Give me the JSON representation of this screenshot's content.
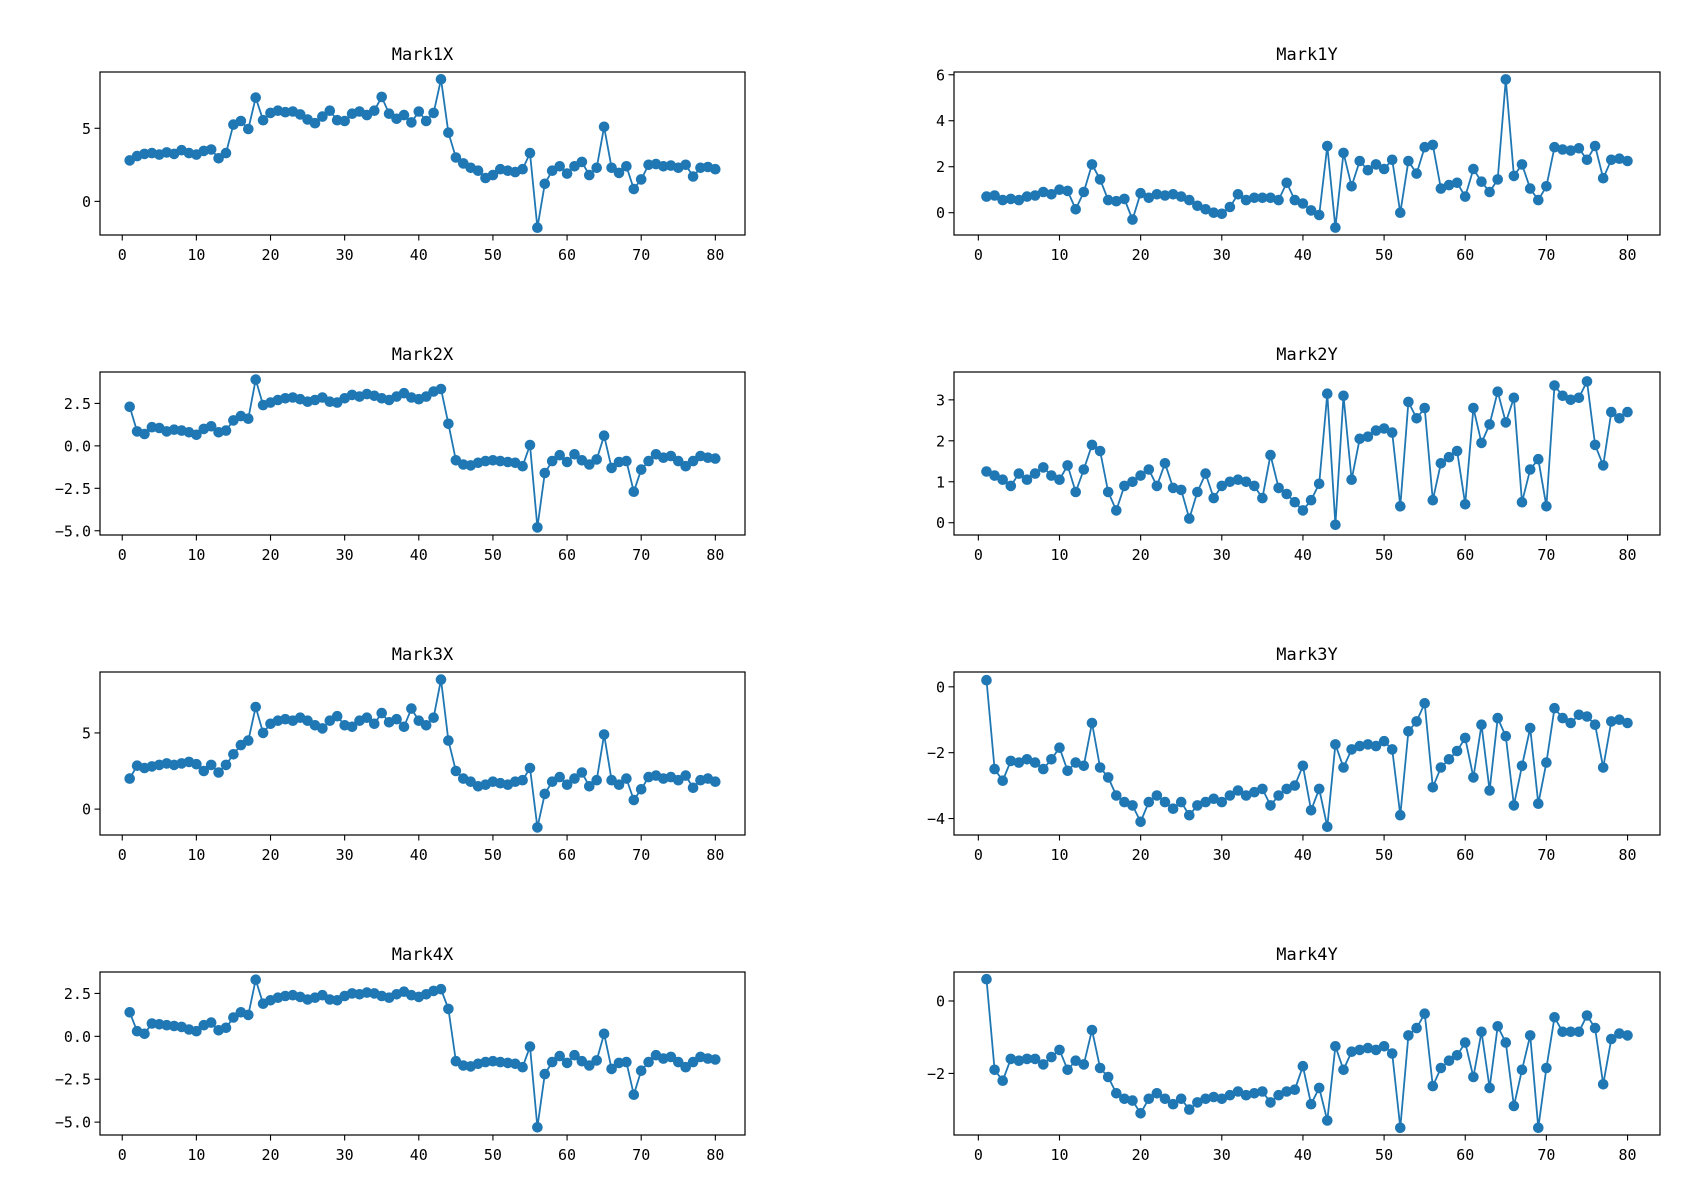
{
  "page": {
    "background": "#ffffff"
  },
  "style": {
    "line_color": "#1f77b4",
    "marker_color": "#1f77b4",
    "axis_color": "#000000",
    "tick_label_color": "#000000"
  },
  "chart_data": [
    {
      "type": "line",
      "title": "Mark1X",
      "x_start": 1,
      "x_step": 1,
      "n": 80,
      "xlim": [
        -3,
        84
      ],
      "xticks": [
        0,
        10,
        20,
        30,
        40,
        50,
        60,
        70,
        80
      ],
      "ylim": [
        -2.3,
        8.85
      ],
      "yticks": [
        0,
        5
      ],
      "ytick_decimals": 0,
      "values": [
        2.8,
        3.1,
        3.25,
        3.3,
        3.2,
        3.35,
        3.25,
        3.5,
        3.3,
        3.2,
        3.45,
        3.55,
        2.95,
        3.3,
        5.25,
        5.5,
        4.95,
        7.1,
        5.55,
        6.05,
        6.2,
        6.1,
        6.15,
        5.95,
        5.6,
        5.35,
        5.8,
        6.2,
        5.55,
        5.5,
        6.0,
        6.15,
        5.9,
        6.2,
        7.15,
        6.0,
        5.65,
        5.9,
        5.4,
        6.15,
        5.5,
        6.05,
        8.35,
        4.7,
        3.0,
        2.6,
        2.3,
        2.1,
        1.6,
        1.8,
        2.2,
        2.1,
        2.0,
        2.2,
        3.3,
        -1.8,
        1.2,
        2.1,
        2.4,
        1.9,
        2.4,
        2.7,
        1.8,
        2.3,
        5.1,
        2.3,
        1.95,
        2.4,
        0.85,
        1.5,
        2.5,
        2.55,
        2.4,
        2.45,
        2.3,
        2.5,
        1.7,
        2.3,
        2.35,
        2.2
      ]
    },
    {
      "type": "line",
      "title": "Mark1Y",
      "x_start": 1,
      "x_step": 1,
      "n": 80,
      "xlim": [
        -3,
        84
      ],
      "xticks": [
        0,
        10,
        20,
        30,
        40,
        50,
        60,
        70,
        80
      ],
      "ylim": [
        -0.97,
        6.12
      ],
      "yticks": [
        0,
        2,
        4,
        6
      ],
      "ytick_decimals": 0,
      "values": [
        0.7,
        0.75,
        0.55,
        0.6,
        0.55,
        0.7,
        0.75,
        0.9,
        0.8,
        1.0,
        0.95,
        0.15,
        0.9,
        2.1,
        1.45,
        0.55,
        0.5,
        0.6,
        -0.3,
        0.85,
        0.65,
        0.8,
        0.75,
        0.8,
        0.7,
        0.55,
        0.3,
        0.15,
        0.0,
        -0.05,
        0.25,
        0.8,
        0.55,
        0.65,
        0.65,
        0.65,
        0.55,
        1.3,
        0.55,
        0.4,
        0.1,
        -0.1,
        2.9,
        -0.65,
        2.6,
        1.15,
        2.25,
        1.85,
        2.1,
        1.9,
        2.3,
        0.0,
        2.25,
        1.7,
        2.85,
        2.95,
        1.05,
        1.2,
        1.3,
        0.7,
        1.9,
        1.35,
        0.9,
        1.45,
        5.8,
        1.6,
        2.1,
        1.05,
        0.55,
        1.15,
        2.85,
        2.75,
        2.7,
        2.8,
        2.3,
        2.9,
        1.5,
        2.3,
        2.35,
        2.25
      ]
    },
    {
      "type": "line",
      "title": "Mark2X",
      "x_start": 1,
      "x_step": 1,
      "n": 80,
      "xlim": [
        -3,
        84
      ],
      "xticks": [
        0,
        10,
        20,
        30,
        40,
        50,
        60,
        70,
        80
      ],
      "ylim": [
        -5.25,
        4.35
      ],
      "yticks": [
        -5.0,
        -2.5,
        0.0,
        2.5
      ],
      "ytick_decimals": 1,
      "values": [
        2.3,
        0.85,
        0.7,
        1.1,
        1.05,
        0.85,
        0.95,
        0.9,
        0.8,
        0.65,
        1.0,
        1.15,
        0.8,
        0.9,
        1.5,
        1.75,
        1.6,
        3.9,
        2.4,
        2.55,
        2.7,
        2.8,
        2.85,
        2.75,
        2.6,
        2.7,
        2.85,
        2.6,
        2.55,
        2.8,
        3.0,
        2.9,
        3.05,
        2.95,
        2.8,
        2.7,
        2.9,
        3.1,
        2.85,
        2.75,
        2.9,
        3.2,
        3.35,
        1.3,
        -0.85,
        -1.1,
        -1.15,
        -1.0,
        -0.9,
        -0.85,
        -0.9,
        -0.95,
        -1.0,
        -1.2,
        0.05,
        -4.8,
        -1.6,
        -0.9,
        -0.55,
        -0.95,
        -0.5,
        -0.85,
        -1.1,
        -0.8,
        0.6,
        -1.3,
        -0.95,
        -0.9,
        -2.7,
        -1.4,
        -0.9,
        -0.5,
        -0.7,
        -0.6,
        -0.9,
        -1.2,
        -0.9,
        -0.6,
        -0.7,
        -0.75
      ]
    },
    {
      "type": "line",
      "title": "Mark2Y",
      "x_start": 1,
      "x_step": 1,
      "n": 80,
      "xlim": [
        -3,
        84
      ],
      "xticks": [
        0,
        10,
        20,
        30,
        40,
        50,
        60,
        70,
        80
      ],
      "ylim": [
        -0.3,
        3.68
      ],
      "yticks": [
        0,
        1,
        2,
        3
      ],
      "ytick_decimals": 0,
      "values": [
        1.25,
        1.15,
        1.05,
        0.9,
        1.2,
        1.05,
        1.2,
        1.35,
        1.15,
        1.05,
        1.4,
        0.75,
        1.3,
        1.9,
        1.75,
        0.75,
        0.3,
        0.9,
        1.0,
        1.15,
        1.3,
        0.9,
        1.45,
        0.85,
        0.8,
        0.1,
        0.75,
        1.2,
        0.6,
        0.9,
        1.0,
        1.05,
        1.0,
        0.9,
        0.6,
        1.65,
        0.85,
        0.7,
        0.5,
        0.3,
        0.55,
        0.95,
        3.15,
        -0.05,
        3.1,
        1.05,
        2.05,
        2.1,
        2.25,
        2.3,
        2.2,
        0.4,
        2.95,
        2.55,
        2.8,
        0.55,
        1.45,
        1.6,
        1.75,
        0.45,
        2.8,
        1.95,
        2.4,
        3.2,
        2.45,
        3.05,
        0.5,
        1.3,
        1.55,
        0.4,
        3.35,
        3.1,
        3.0,
        3.05,
        3.45,
        1.9,
        1.4,
        2.7,
        2.55,
        2.7
      ]
    },
    {
      "type": "line",
      "title": "Mark3X",
      "x_start": 1,
      "x_step": 1,
      "n": 80,
      "xlim": [
        -3,
        84
      ],
      "xticks": [
        0,
        10,
        20,
        30,
        40,
        50,
        60,
        70,
        80
      ],
      "ylim": [
        -1.7,
        9.0
      ],
      "yticks": [
        0,
        5
      ],
      "ytick_decimals": 0,
      "values": [
        2.0,
        2.85,
        2.7,
        2.8,
        2.9,
        3.0,
        2.9,
        3.0,
        3.1,
        2.95,
        2.5,
        2.9,
        2.4,
        2.9,
        3.6,
        4.2,
        4.5,
        6.7,
        5.0,
        5.6,
        5.8,
        5.9,
        5.8,
        6.0,
        5.8,
        5.5,
        5.3,
        5.8,
        6.1,
        5.5,
        5.4,
        5.8,
        6.0,
        5.6,
        6.3,
        5.7,
        5.9,
        5.4,
        6.6,
        5.8,
        5.5,
        6.0,
        8.5,
        4.5,
        2.5,
        2.0,
        1.8,
        1.5,
        1.6,
        1.8,
        1.7,
        1.6,
        1.8,
        1.9,
        2.7,
        -1.2,
        1.0,
        1.8,
        2.1,
        1.6,
        2.0,
        2.4,
        1.5,
        1.9,
        4.9,
        1.9,
        1.6,
        2.0,
        0.6,
        1.3,
        2.1,
        2.2,
        2.0,
        2.1,
        1.9,
        2.2,
        1.4,
        1.9,
        2.0,
        1.8
      ]
    },
    {
      "type": "line",
      "title": "Mark3Y",
      "x_start": 1,
      "x_step": 1,
      "n": 80,
      "xlim": [
        -3,
        84
      ],
      "xticks": [
        0,
        10,
        20,
        30,
        40,
        50,
        60,
        70,
        80
      ],
      "ylim": [
        -4.5,
        0.45
      ],
      "yticks": [
        -4,
        -2,
        0
      ],
      "ytick_decimals": 0,
      "values": [
        0.2,
        -2.5,
        -2.85,
        -2.25,
        -2.3,
        -2.2,
        -2.3,
        -2.5,
        -2.2,
        -1.85,
        -2.55,
        -2.3,
        -2.4,
        -1.1,
        -2.45,
        -2.75,
        -3.3,
        -3.5,
        -3.6,
        -4.1,
        -3.5,
        -3.3,
        -3.5,
        -3.7,
        -3.5,
        -3.9,
        -3.6,
        -3.5,
        -3.4,
        -3.5,
        -3.3,
        -3.15,
        -3.3,
        -3.2,
        -3.1,
        -3.6,
        -3.3,
        -3.1,
        -3.0,
        -2.4,
        -3.75,
        -3.1,
        -4.25,
        -1.75,
        -2.45,
        -1.9,
        -1.8,
        -1.75,
        -1.8,
        -1.65,
        -1.9,
        -3.9,
        -1.35,
        -1.05,
        -0.5,
        -3.05,
        -2.45,
        -2.2,
        -1.95,
        -1.55,
        -2.75,
        -1.15,
        -3.15,
        -0.95,
        -1.5,
        -3.6,
        -2.4,
        -1.25,
        -3.55,
        -2.3,
        -0.65,
        -0.95,
        -1.1,
        -0.85,
        -0.9,
        -1.15,
        -2.45,
        -1.05,
        -1.0,
        -1.1
      ]
    },
    {
      "type": "line",
      "title": "Mark4X",
      "x_start": 1,
      "x_step": 1,
      "n": 80,
      "xlim": [
        -3,
        84
      ],
      "xticks": [
        0,
        10,
        20,
        30,
        40,
        50,
        60,
        70,
        80
      ],
      "ylim": [
        -5.75,
        3.75
      ],
      "yticks": [
        -5.0,
        -2.5,
        0.0,
        2.5
      ],
      "ytick_decimals": 1,
      "values": [
        1.4,
        0.3,
        0.15,
        0.75,
        0.7,
        0.65,
        0.6,
        0.55,
        0.4,
        0.3,
        0.65,
        0.8,
        0.35,
        0.5,
        1.1,
        1.4,
        1.25,
        3.3,
        1.9,
        2.1,
        2.25,
        2.35,
        2.4,
        2.3,
        2.15,
        2.25,
        2.4,
        2.15,
        2.1,
        2.35,
        2.5,
        2.45,
        2.55,
        2.5,
        2.35,
        2.25,
        2.45,
        2.6,
        2.4,
        2.3,
        2.45,
        2.65,
        2.75,
        1.6,
        -1.45,
        -1.7,
        -1.75,
        -1.6,
        -1.5,
        -1.45,
        -1.5,
        -1.55,
        -1.6,
        -1.8,
        -0.6,
        -5.3,
        -2.2,
        -1.5,
        -1.15,
        -1.55,
        -1.1,
        -1.45,
        -1.7,
        -1.4,
        0.15,
        -1.9,
        -1.55,
        -1.5,
        -3.4,
        -2.0,
        -1.5,
        -1.1,
        -1.3,
        -1.2,
        -1.5,
        -1.8,
        -1.5,
        -1.2,
        -1.3,
        -1.35
      ]
    },
    {
      "type": "line",
      "title": "Mark4Y",
      "x_start": 1,
      "x_step": 1,
      "n": 80,
      "xlim": [
        -3,
        84
      ],
      "xticks": [
        0,
        10,
        20,
        30,
        40,
        50,
        60,
        70,
        80
      ],
      "ylim": [
        -3.7,
        0.8
      ],
      "yticks": [
        -2,
        0
      ],
      "ytick_decimals": 0,
      "values": [
        0.6,
        -1.9,
        -2.2,
        -1.6,
        -1.65,
        -1.6,
        -1.6,
        -1.75,
        -1.55,
        -1.35,
        -1.9,
        -1.65,
        -1.75,
        -0.8,
        -1.85,
        -2.1,
        -2.55,
        -2.7,
        -2.75,
        -3.1,
        -2.7,
        -2.55,
        -2.7,
        -2.85,
        -2.7,
        -3.0,
        -2.8,
        -2.7,
        -2.65,
        -2.7,
        -2.6,
        -2.5,
        -2.6,
        -2.55,
        -2.5,
        -2.8,
        -2.6,
        -2.5,
        -2.45,
        -1.8,
        -2.85,
        -2.4,
        -3.3,
        -1.25,
        -1.9,
        -1.4,
        -1.35,
        -1.3,
        -1.35,
        -1.25,
        -1.45,
        -3.5,
        -0.95,
        -0.75,
        -0.35,
        -2.35,
        -1.85,
        -1.65,
        -1.5,
        -1.15,
        -2.1,
        -0.85,
        -2.4,
        -0.7,
        -1.15,
        -2.9,
        -1.9,
        -0.95,
        -3.5,
        -1.85,
        -0.45,
        -0.85,
        -0.85,
        -0.85,
        -0.4,
        -0.75,
        -2.3,
        -1.05,
        -0.9,
        -0.95
      ]
    }
  ]
}
